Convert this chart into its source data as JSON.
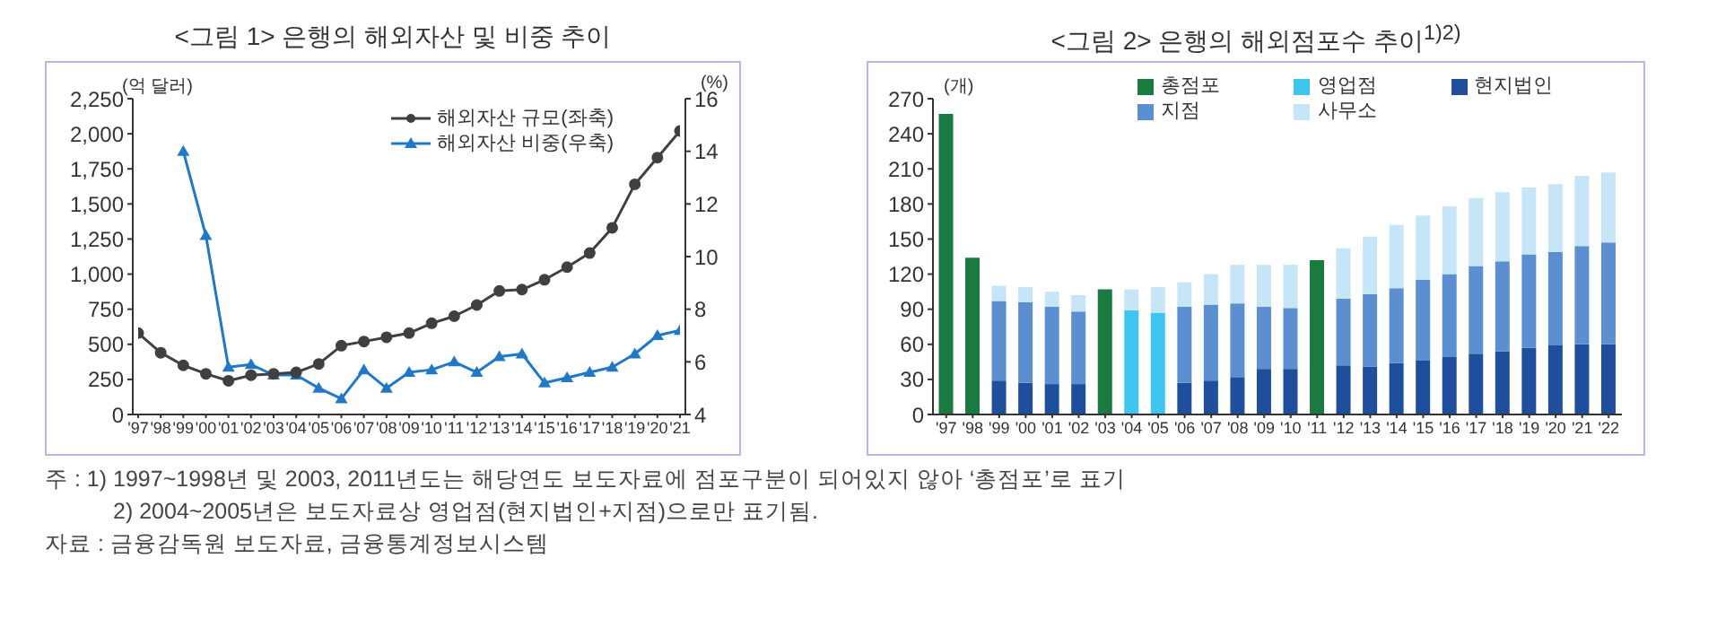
{
  "chart_data": [
    {
      "type": "line",
      "title": "<그림 1> 은행의 해외자산 및 비중 추이",
      "ylabel": "(억 달러)",
      "y2label": "(%)",
      "categories": [
        "'97",
        "'98",
        "'99",
        "'00",
        "'01",
        "'02",
        "'03",
        "'04",
        "'05",
        "'06",
        "'07",
        "'08",
        "'09",
        "'10",
        "'11",
        "'12",
        "'13",
        "'14",
        "'15",
        "'16",
        "'17",
        "'18",
        "'19",
        "'20",
        "'21"
      ],
      "series": [
        {
          "name": "해외자산 규모(좌축)",
          "color": "#404040",
          "marker": "circle",
          "values": [
            580,
            440,
            350,
            290,
            240,
            280,
            290,
            300,
            360,
            490,
            520,
            550,
            580,
            650,
            700,
            780,
            880,
            890,
            960,
            1050,
            1150,
            1330,
            1640,
            1830,
            2020
          ]
        },
        {
          "name": "해외자산 비중(우축)",
          "color": "#1f78c8",
          "marker": "triangle",
          "axis": "y2",
          "values": [
            null,
            null,
            14.0,
            10.8,
            5.8,
            5.9,
            5.5,
            5.5,
            5.0,
            4.6,
            5.7,
            5.0,
            5.6,
            5.7,
            6.0,
            5.6,
            6.2,
            6.3,
            5.2,
            5.4,
            5.6,
            5.8,
            6.3,
            7.0,
            7.2
          ]
        }
      ],
      "ylim": [
        0,
        2250
      ],
      "yticks": [
        0,
        {
          "value": 250,
          "label": "250"
        },
        {
          "value": 500,
          "label": "500"
        },
        {
          "value": 750,
          "label": "750"
        },
        {
          "value": 1000,
          "label": "1,000"
        },
        {
          "value": 1250,
          "label": "1,250"
        },
        {
          "value": 1500,
          "label": "1,500"
        },
        {
          "value": 1750,
          "label": "1,750"
        },
        {
          "value": 2000,
          "label": "2,000"
        },
        {
          "value": 2250,
          "label": "2,250"
        }
      ],
      "y2lim": [
        4,
        16
      ],
      "y2ticks": [
        4,
        6,
        8,
        10,
        12,
        14,
        16
      ],
      "grid": false,
      "legend": "top right",
      "annotations": [
        "주 : 1) 1997~1998년 및 2003, 2011년도는 해당연도 보도자료에 점포구분이 되어있지 않아 ‘총점포’로 표기",
        "2) 2004~2005년은 보도자료상 영업점(현지법인+지점)으로만 표기됨.",
        "자료 : 금융감독원 보도자료, 금융통계정보시스템"
      ]
    },
    {
      "type": "bar",
      "title": "<그림 2> 은행의 해외점포수 추이$^{1)2)}$",
      "ylabel": "(개)",
      "stacked": true,
      "categories": [
        "'97",
        "'98",
        "'99",
        "'00",
        "'01",
        "'02",
        "'03",
        "'04",
        "'05",
        "'06",
        "'07",
        "'08",
        "'09",
        "'10",
        "'11",
        "'12",
        "'13",
        "'14",
        "'15",
        "'16",
        "'17",
        "'18",
        "'19",
        "'20",
        "'21",
        "'22"
      ],
      "series": [
        {
          "name": "총점포",
          "color": "#1a7a40",
          "values": [
            257,
            134,
            null,
            null,
            null,
            null,
            107,
            null,
            null,
            null,
            null,
            null,
            null,
            null,
            132,
            null,
            null,
            null,
            null,
            null,
            null,
            null,
            null,
            null,
            null,
            null
          ]
        },
        {
          "name": "영업점",
          "color": "#3ec6f0",
          "values": [
            null,
            null,
            null,
            null,
            null,
            null,
            null,
            89,
            87,
            null,
            null,
            null,
            null,
            null,
            null,
            null,
            null,
            null,
            null,
            null,
            null,
            null,
            null,
            null,
            null,
            null
          ]
        },
        {
          "name": "현지법인",
          "color": "#1f4f9c",
          "values": [
            null,
            null,
            29,
            27,
            26,
            26,
            null,
            null,
            null,
            27,
            29,
            32,
            39,
            39,
            null,
            42,
            41,
            44,
            46,
            49,
            52,
            54,
            57,
            59,
            60,
            60
          ]
        },
        {
          "name": "지점",
          "color": "#5b8fd0",
          "values": [
            null,
            null,
            68,
            69,
            66,
            62,
            null,
            null,
            null,
            65,
            65,
            63,
            53,
            52,
            null,
            57,
            62,
            64,
            69,
            71,
            75,
            77,
            80,
            80,
            84,
            87
          ]
        },
        {
          "name": "사무소",
          "color": "#c6e6f8",
          "values": [
            null,
            null,
            13,
            13,
            13,
            14,
            null,
            18,
            22,
            21,
            26,
            33,
            36,
            37,
            null,
            43,
            49,
            54,
            55,
            58,
            58,
            59,
            57,
            58,
            60,
            60
          ]
        }
      ],
      "ylim": [
        0,
        270
      ],
      "yticks": [
        0,
        30,
        60,
        90,
        120,
        150,
        180,
        210,
        240,
        270
      ],
      "grid": false,
      "legend": "top"
    }
  ]
}
